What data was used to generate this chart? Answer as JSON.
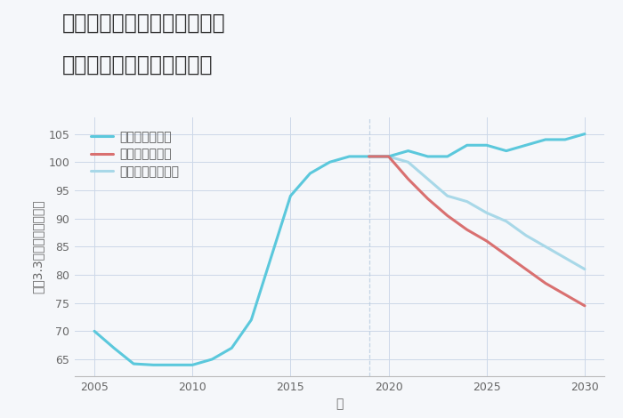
{
  "title_line1": "福岡県朝倉郡東峰村小石原の",
  "title_line2": "中古マンションの価格推移",
  "xlabel": "年",
  "ylabel": "坪（3.3㎡）単価（万円）",
  "background_color": "#f5f7fa",
  "plot_background": "#f5f7fa",
  "xlim": [
    2004,
    2031
  ],
  "ylim": [
    62,
    108
  ],
  "yticks": [
    65,
    70,
    75,
    80,
    85,
    90,
    95,
    100,
    105
  ],
  "xticks": [
    2005,
    2010,
    2015,
    2020,
    2025,
    2030
  ],
  "good_scenario": {
    "x": [
      2005,
      2006,
      2007,
      2008,
      2009,
      2010,
      2011,
      2012,
      2013,
      2014,
      2015,
      2016,
      2017,
      2018,
      2019,
      2020,
      2021,
      2022,
      2023,
      2024,
      2025,
      2026,
      2027,
      2028,
      2029,
      2030
    ],
    "y": [
      70,
      67,
      64.2,
      64.0,
      64.0,
      64.0,
      65.0,
      67.0,
      72.0,
      83.0,
      94.0,
      98.0,
      100.0,
      101.0,
      101.0,
      101.0,
      102.0,
      101.0,
      101.0,
      103.0,
      103.0,
      102.0,
      103.0,
      104.0,
      104.0,
      105.0
    ],
    "color": "#5bc8dc",
    "label": "グッドシナリオ",
    "linewidth": 2.2
  },
  "bad_scenario": {
    "x": [
      2019,
      2020,
      2021,
      2022,
      2023,
      2024,
      2025,
      2026,
      2027,
      2028,
      2029,
      2030
    ],
    "y": [
      101.0,
      101.0,
      97.0,
      93.5,
      90.5,
      88.0,
      86.0,
      83.5,
      81.0,
      78.5,
      76.5,
      74.5
    ],
    "color": "#d97070",
    "label": "バッドシナリオ",
    "linewidth": 2.2
  },
  "normal_scenario": {
    "x": [
      2019,
      2020,
      2021,
      2022,
      2023,
      2024,
      2025,
      2026,
      2027,
      2028,
      2029,
      2030
    ],
    "y": [
      101.0,
      101.0,
      100.0,
      97.0,
      94.0,
      93.0,
      91.0,
      89.5,
      87.0,
      85.0,
      83.0,
      81.0
    ],
    "color": "#a8d8e8",
    "label": "ノーマルシナリオ",
    "linewidth": 2.2
  },
  "title_fontsize": 17,
  "axis_fontsize": 10,
  "legend_fontsize": 10,
  "tick_fontsize": 9,
  "grid_color": "#ccd8e8",
  "vline_x": 2019,
  "vline_color": "#b8cce0"
}
